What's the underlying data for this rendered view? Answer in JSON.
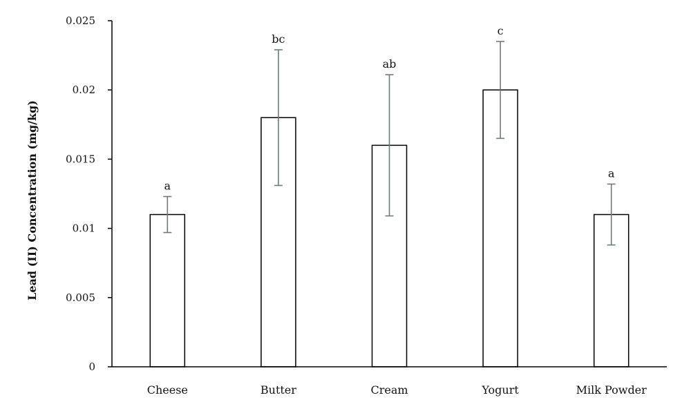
{
  "chart_data": {
    "type": "bar",
    "title": "",
    "xlabel": "",
    "ylabel": "Lead (II) Concentration (mg/kg)",
    "ylim": [
      0,
      0.025
    ],
    "yticks": [
      {
        "value": 0,
        "label": "0"
      },
      {
        "value": 0.005,
        "label": "0.005"
      },
      {
        "value": 0.01,
        "label": "0.01"
      },
      {
        "value": 0.015,
        "label": "0.015"
      },
      {
        "value": 0.02,
        "label": "0.02"
      },
      {
        "value": 0.025,
        "label": "0.025"
      }
    ],
    "categories": [
      "Cheese",
      "Butter",
      "Cream",
      "Yogurt",
      "Milk Powder"
    ],
    "values": [
      0.011,
      0.018,
      0.016,
      0.02,
      0.011
    ],
    "error_low": [
      0.0097,
      0.0131,
      0.0109,
      0.0165,
      0.0088
    ],
    "error_high": [
      0.0123,
      0.0229,
      0.0211,
      0.0235,
      0.0132
    ],
    "significance_labels": [
      "a",
      "bc",
      "ab",
      "c",
      "a"
    ],
    "grid": false,
    "legend": "none",
    "colors": {
      "bar_fill": "#ffffff",
      "bar_stroke": "#000000",
      "axis": "#000000",
      "error_bar": "#6b7b7b"
    }
  }
}
